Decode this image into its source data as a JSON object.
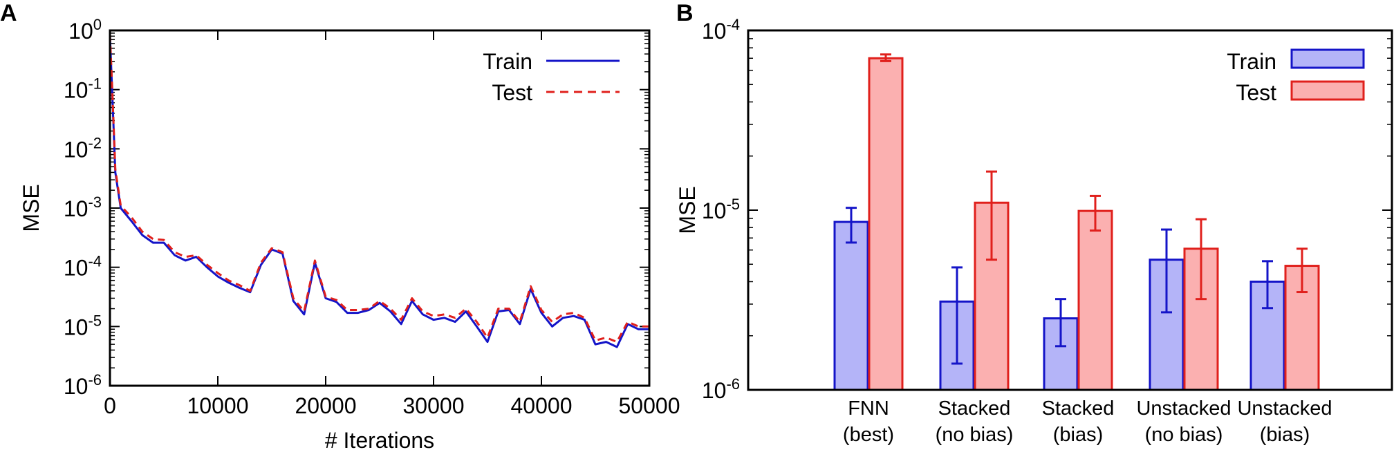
{
  "panel_labels": {
    "a": "A",
    "b": "B"
  },
  "colors": {
    "train": "#1414c8",
    "test": "#e0201c",
    "train_fill": "#b4b4f8",
    "test_fill": "#fbb0b0"
  },
  "chart_data": [
    {
      "type": "line",
      "panel": "A",
      "title": "",
      "xlabel": "# Iterations",
      "ylabel": "MSE",
      "yscale": "log",
      "xlim": [
        0,
        50000
      ],
      "ylim": [
        1e-06,
        1
      ],
      "xticks": [
        "0",
        "10000",
        "20000",
        "30000",
        "40000",
        "50000"
      ],
      "yticks": [
        {
          "base": "10",
          "exp": "0"
        },
        {
          "base": "10",
          "exp": "-1"
        },
        {
          "base": "10",
          "exp": "-2"
        },
        {
          "base": "10",
          "exp": "-3"
        },
        {
          "base": "10",
          "exp": "-4"
        },
        {
          "base": "10",
          "exp": "-5"
        },
        {
          "base": "10",
          "exp": "-6"
        }
      ],
      "grid": false,
      "legend_position": "top-right",
      "x": [
        0,
        200,
        500,
        1000,
        2000,
        3000,
        4000,
        5000,
        6000,
        7000,
        8000,
        9000,
        10000,
        11000,
        12000,
        13000,
        14000,
        15000,
        16000,
        17000,
        18000,
        19000,
        20000,
        21000,
        22000,
        23000,
        24000,
        25000,
        26000,
        27000,
        28000,
        29000,
        30000,
        31000,
        32000,
        33000,
        34000,
        35000,
        36000,
        37000,
        38000,
        39000,
        40000,
        41000,
        42000,
        43000,
        44000,
        45000,
        46000,
        47000,
        48000,
        49000,
        50000
      ],
      "series": [
        {
          "name": "Train",
          "style": "solid",
          "values": [
            0.8,
            0.1,
            0.004,
            0.001,
            0.0006,
            0.00035,
            0.00026,
            0.00026,
            0.00016,
            0.00013,
            0.00015,
            0.0001,
            7e-05,
            5.5e-05,
            4.5e-05,
            3.8e-05,
            0.00011,
            0.0002,
            0.00017,
            2.7e-05,
            1.6e-05,
            0.00012,
            3e-05,
            2.6e-05,
            1.7e-05,
            1.7e-05,
            1.9e-05,
            2.5e-05,
            1.8e-05,
            1.1e-05,
            2.7e-05,
            1.6e-05,
            1.3e-05,
            1.4e-05,
            1.2e-05,
            1.8e-05,
            1e-05,
            5.5e-06,
            1.8e-05,
            1.9e-05,
            1.1e-05,
            4.3e-05,
            1.7e-05,
            1e-05,
            1.4e-05,
            1.5e-05,
            1.3e-05,
            5e-06,
            5.5e-06,
            4.5e-06,
            1.1e-05,
            9e-06,
            9e-06
          ]
        },
        {
          "name": "Test",
          "style": "dashed",
          "values": [
            0.85,
            0.12,
            0.0045,
            0.0011,
            0.0007,
            0.0004,
            0.0003,
            0.00029,
            0.00018,
            0.00015,
            0.00016,
            0.00011,
            8e-05,
            6e-05,
            5e-05,
            4e-05,
            0.00012,
            0.00021,
            0.00018,
            3e-05,
            1.8e-05,
            0.00013,
            3.2e-05,
            2.8e-05,
            1.9e-05,
            1.9e-05,
            2e-05,
            2.7e-05,
            2e-05,
            1.3e-05,
            3e-05,
            1.8e-05,
            1.5e-05,
            1.6e-05,
            1.4e-05,
            2e-05,
            1.2e-05,
            6.5e-06,
            2e-05,
            2e-05,
            1.2e-05,
            4.8e-05,
            1.9e-05,
            1.2e-05,
            1.6e-05,
            1.7e-05,
            1.4e-05,
            5.8e-06,
            6.5e-06,
            5.5e-06,
            1.2e-05,
            1e-05,
            1e-05
          ]
        }
      ]
    },
    {
      "type": "bar",
      "panel": "B",
      "title": "",
      "xlabel": "",
      "ylabel": "MSE",
      "yscale": "log",
      "ylim": [
        1e-06,
        0.0001
      ],
      "yticks": [
        {
          "base": "10",
          "exp": "-4"
        },
        {
          "base": "10",
          "exp": "-5"
        },
        {
          "base": "10",
          "exp": "-6"
        }
      ],
      "grid": false,
      "legend_position": "top-right",
      "categories": [
        [
          "FNN",
          "(best)"
        ],
        [
          "Stacked",
          "(no bias)"
        ],
        [
          "Stacked",
          "(bias)"
        ],
        [
          "Unstacked",
          "(no bias)"
        ],
        [
          "Unstacked",
          "(bias)"
        ]
      ],
      "series": [
        {
          "name": "Train",
          "values": [
            8.6e-06,
            3.1e-06,
            2.5e-06,
            5.3e-06,
            4e-06
          ],
          "error_low": [
            6.6e-06,
            1.4e-06,
            1.75e-06,
            2.7e-06,
            2.85e-06
          ],
          "error_high": [
            1.03e-05,
            4.8e-06,
            3.2e-06,
            7.8e-06,
            5.2e-06
          ]
        },
        {
          "name": "Test",
          "values": [
            7e-05,
            1.1e-05,
            9.9e-06,
            6.1e-06,
            4.9e-06
          ],
          "error_low": [
            6.75e-05,
            5.3e-06,
            7.7e-06,
            3.2e-06,
            3.5e-06
          ],
          "error_high": [
            7.35e-05,
            1.64e-05,
            1.2e-05,
            8.9e-06,
            6.1e-06
          ]
        }
      ]
    }
  ]
}
